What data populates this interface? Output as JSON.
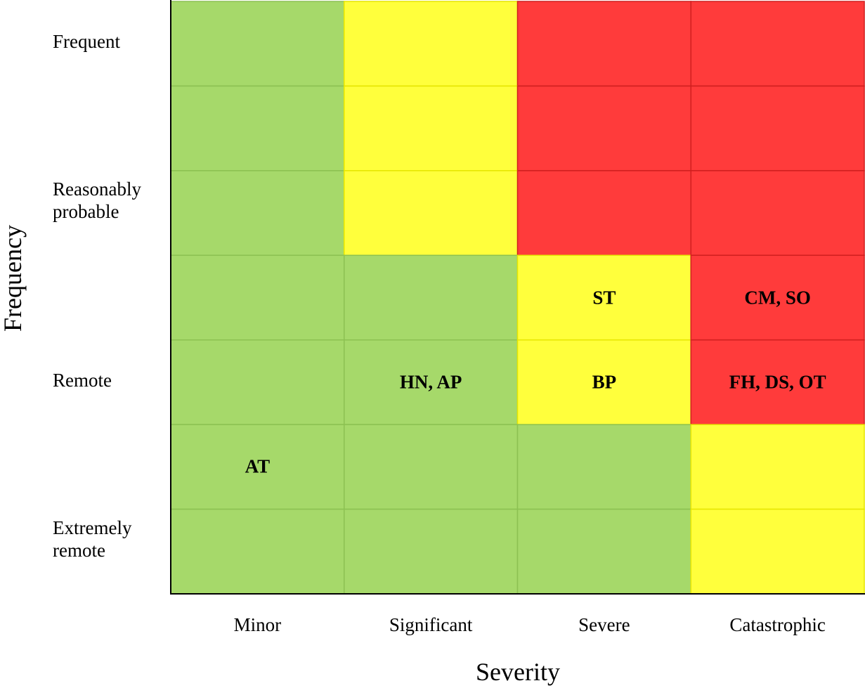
{
  "chart_data": {
    "type": "heatmap",
    "xlabel": "Severity",
    "ylabel": "Frequency",
    "columns": [
      "Minor",
      "Significant",
      "Severe",
      "Catastrophic"
    ],
    "row_labels": [
      {
        "text": "Frequent",
        "row": 0
      },
      {
        "text": "Reasonably\nprobable",
        "row": 2
      },
      {
        "text": "Remote",
        "row": 4
      },
      {
        "text": "Extremely\nremote",
        "row": 6
      }
    ],
    "row_count": 7,
    "colors": {
      "G": "#a6d96a",
      "Y": "#ffff3c",
      "R": "#ff3b3b"
    },
    "grid": [
      [
        "G",
        "Y",
        "R",
        "R"
      ],
      [
        "G",
        "Y",
        "R",
        "R"
      ],
      [
        "G",
        "Y",
        "R",
        "R"
      ],
      [
        "G",
        "G",
        "Y",
        "R"
      ],
      [
        "G",
        "G",
        "Y",
        "R"
      ],
      [
        "G",
        "G",
        "G",
        "Y"
      ],
      [
        "G",
        "G",
        "G",
        "Y"
      ]
    ],
    "cell_labels": [
      {
        "text": "ST",
        "row": 3,
        "col": 2
      },
      {
        "text": "CM, SO",
        "row": 3,
        "col": 3
      },
      {
        "text": "HN, AP",
        "row": 4,
        "col": 1
      },
      {
        "text": "BP",
        "row": 4,
        "col": 2
      },
      {
        "text": "FH, DS, OT",
        "row": 4,
        "col": 3
      },
      {
        "text": "AT",
        "row": 5,
        "col": 0
      }
    ]
  }
}
